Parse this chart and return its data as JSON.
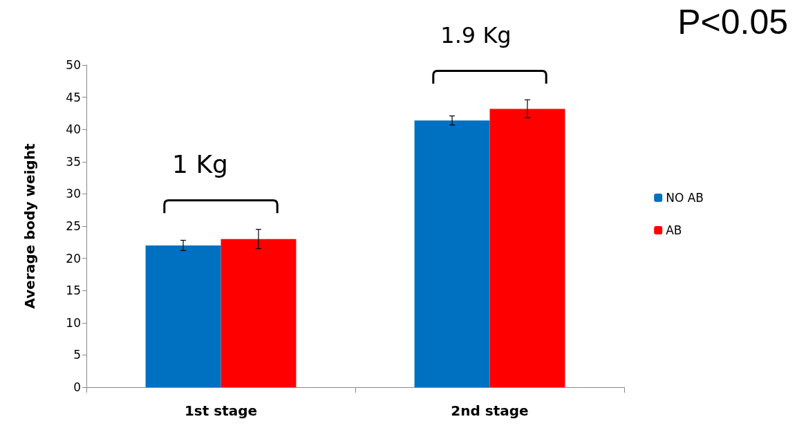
{
  "chart_data": {
    "type": "bar",
    "title": "P<0.05",
    "ylabel": "Average body weight",
    "categories": [
      "1st stage",
      "2nd stage"
    ],
    "series": [
      {
        "name": "NO AB",
        "color": "#0070c0",
        "values": [
          22.0,
          41.4
        ],
        "errors": [
          0.8,
          0.7
        ]
      },
      {
        "name": "AB",
        "color": "#ff0000",
        "values": [
          23.0,
          43.2
        ],
        "errors": [
          1.5,
          1.4
        ]
      }
    ],
    "ylim": [
      0,
      50
    ],
    "yticks": [
      0,
      5,
      10,
      15,
      20,
      25,
      30,
      35,
      40,
      45,
      50
    ],
    "annotations": [
      "1 Kg",
      "1.9 Kg"
    ],
    "grid": false,
    "legend": "right"
  }
}
